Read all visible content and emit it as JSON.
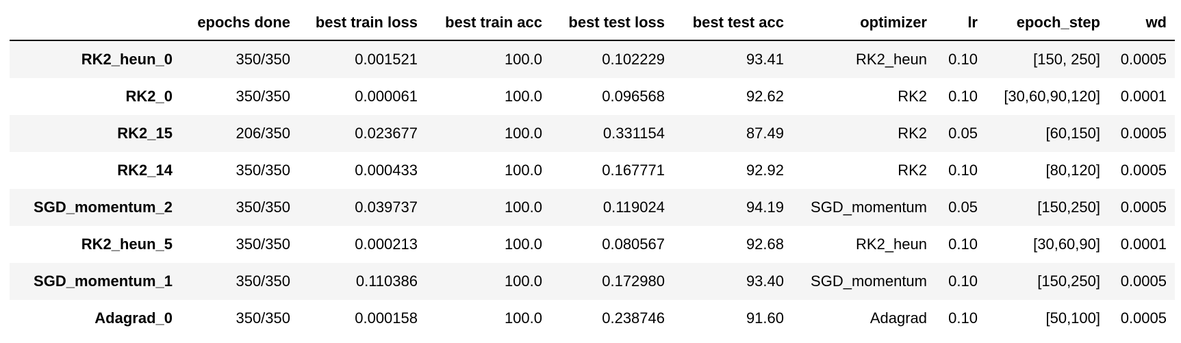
{
  "table": {
    "columns": [
      "",
      "epochs done",
      "best train loss",
      "best train acc",
      "best test loss",
      "best test acc",
      "optimizer",
      "lr",
      "epoch_step",
      "wd"
    ],
    "rows": [
      {
        "name": "RK2_heun_0",
        "cells": [
          "350/350",
          "0.001521",
          "100.0",
          "0.102229",
          "93.41",
          "RK2_heun",
          "0.10",
          "[150, 250]",
          "0.0005"
        ]
      },
      {
        "name": "RK2_0",
        "cells": [
          "350/350",
          "0.000061",
          "100.0",
          "0.096568",
          "92.62",
          "RK2",
          "0.10",
          "[30,60,90,120]",
          "0.0001"
        ]
      },
      {
        "name": "RK2_15",
        "cells": [
          "206/350",
          "0.023677",
          "100.0",
          "0.331154",
          "87.49",
          "RK2",
          "0.05",
          "[60,150]",
          "0.0005"
        ]
      },
      {
        "name": "RK2_14",
        "cells": [
          "350/350",
          "0.000433",
          "100.0",
          "0.167771",
          "92.92",
          "RK2",
          "0.10",
          "[80,120]",
          "0.0005"
        ]
      },
      {
        "name": "SGD_momentum_2",
        "cells": [
          "350/350",
          "0.039737",
          "100.0",
          "0.119024",
          "94.19",
          "SGD_momentum",
          "0.05",
          "[150,250]",
          "0.0005"
        ]
      },
      {
        "name": "RK2_heun_5",
        "cells": [
          "350/350",
          "0.000213",
          "100.0",
          "0.080567",
          "92.68",
          "RK2_heun",
          "0.10",
          "[30,60,90]",
          "0.0001"
        ]
      },
      {
        "name": "SGD_momentum_1",
        "cells": [
          "350/350",
          "0.110386",
          "100.0",
          "0.172980",
          "93.40",
          "SGD_momentum",
          "0.10",
          "[150,250]",
          "0.0005"
        ]
      },
      {
        "name": "Adagrad_0",
        "cells": [
          "350/350",
          "0.000158",
          "100.0",
          "0.238746",
          "91.60",
          "Adagrad",
          "0.10",
          "[50,100]",
          "0.0005"
        ]
      }
    ]
  }
}
